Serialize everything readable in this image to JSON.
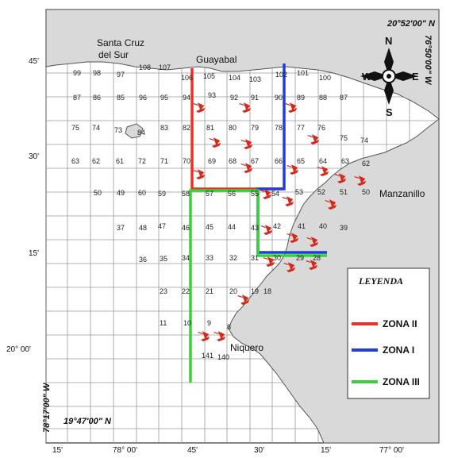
{
  "map": {
    "place_names": {
      "santa_cruz": [
        "Santa Cruz",
        "del Sur"
      ],
      "guayabal": "Guayabal",
      "manzanillo": "Manzanillo",
      "niquero": "Niquero"
    },
    "coordinates": {
      "top_right": "20°52'00\" N",
      "right_vertical": "76°50'00\" W",
      "left_vertical": "78°17'00\" W",
      "bottom_left": "19°47'00\" N"
    },
    "lat_ticks": [
      "45'",
      "30'",
      "15'",
      "20° 00'"
    ],
    "lon_ticks": [
      "15'",
      "78° 00'",
      "45'",
      "30'",
      "15'",
      "77° 00'"
    ],
    "compass": {
      "n": "N",
      "s": "S",
      "e": "E",
      "w": "W"
    },
    "legend": {
      "title": "LEYENDA",
      "items": [
        {
          "label": "ZONA II",
          "color": "#e8312a"
        },
        {
          "label": "ZONA I",
          "color": "#1f3fd6"
        },
        {
          "label": "ZONA III",
          "color": "#38d13a"
        }
      ]
    },
    "cells": [
      {
        "n": "99"
      },
      {
        "n": "98"
      },
      {
        "n": "97"
      },
      {
        "n": "108"
      },
      {
        "n": "107"
      },
      {
        "n": "106"
      },
      {
        "n": "105"
      },
      {
        "n": "104"
      },
      {
        "n": "103"
      },
      {
        "n": "102"
      },
      {
        "n": "101"
      },
      {
        "n": "100"
      },
      {
        "n": "87"
      },
      {
        "n": "86"
      },
      {
        "n": "85"
      },
      {
        "n": "96"
      },
      {
        "n": "95"
      },
      {
        "n": "94"
      },
      {
        "n": "93"
      },
      {
        "n": "92"
      },
      {
        "n": "91"
      },
      {
        "n": "90"
      },
      {
        "n": "89"
      },
      {
        "n": "88"
      },
      {
        "n": "87"
      },
      {
        "n": "75"
      },
      {
        "n": "74"
      },
      {
        "n": "73"
      },
      {
        "n": "84"
      },
      {
        "n": "83"
      },
      {
        "n": "82"
      },
      {
        "n": "81"
      },
      {
        "n": "80"
      },
      {
        "n": "79"
      },
      {
        "n": "78"
      },
      {
        "n": "77"
      },
      {
        "n": "76"
      },
      {
        "n": "75"
      },
      {
        "n": "74"
      },
      {
        "n": "63"
      },
      {
        "n": "62"
      },
      {
        "n": "61"
      },
      {
        "n": "72"
      },
      {
        "n": "71"
      },
      {
        "n": "70"
      },
      {
        "n": "69"
      },
      {
        "n": "68"
      },
      {
        "n": "67"
      },
      {
        "n": "66"
      },
      {
        "n": "65"
      },
      {
        "n": "64"
      },
      {
        "n": "63"
      },
      {
        "n": "62"
      },
      {
        "n": "50"
      },
      {
        "n": "49"
      },
      {
        "n": "60"
      },
      {
        "n": "59"
      },
      {
        "n": "58"
      },
      {
        "n": "57"
      },
      {
        "n": "56"
      },
      {
        "n": "55"
      },
      {
        "n": "54"
      },
      {
        "n": "53"
      },
      {
        "n": "52"
      },
      {
        "n": "51"
      },
      {
        "n": "50"
      },
      {
        "n": "37"
      },
      {
        "n": "48"
      },
      {
        "n": "47"
      },
      {
        "n": "46"
      },
      {
        "n": "45"
      },
      {
        "n": "44"
      },
      {
        "n": "43"
      },
      {
        "n": "42"
      },
      {
        "n": "41"
      },
      {
        "n": "40"
      },
      {
        "n": "39"
      },
      {
        "n": "36"
      },
      {
        "n": "35"
      },
      {
        "n": "34"
      },
      {
        "n": "33"
      },
      {
        "n": "32"
      },
      {
        "n": "31"
      },
      {
        "n": "30"
      },
      {
        "n": "29"
      },
      {
        "n": "28"
      },
      {
        "n": "23"
      },
      {
        "n": "22"
      },
      {
        "n": "21"
      },
      {
        "n": "20"
      },
      {
        "n": "19"
      },
      {
        "n": "18"
      },
      {
        "n": "11"
      },
      {
        "n": "10"
      },
      {
        "n": "9"
      },
      {
        "n": "8"
      },
      {
        "n": "141"
      },
      {
        "n": "140"
      }
    ]
  }
}
